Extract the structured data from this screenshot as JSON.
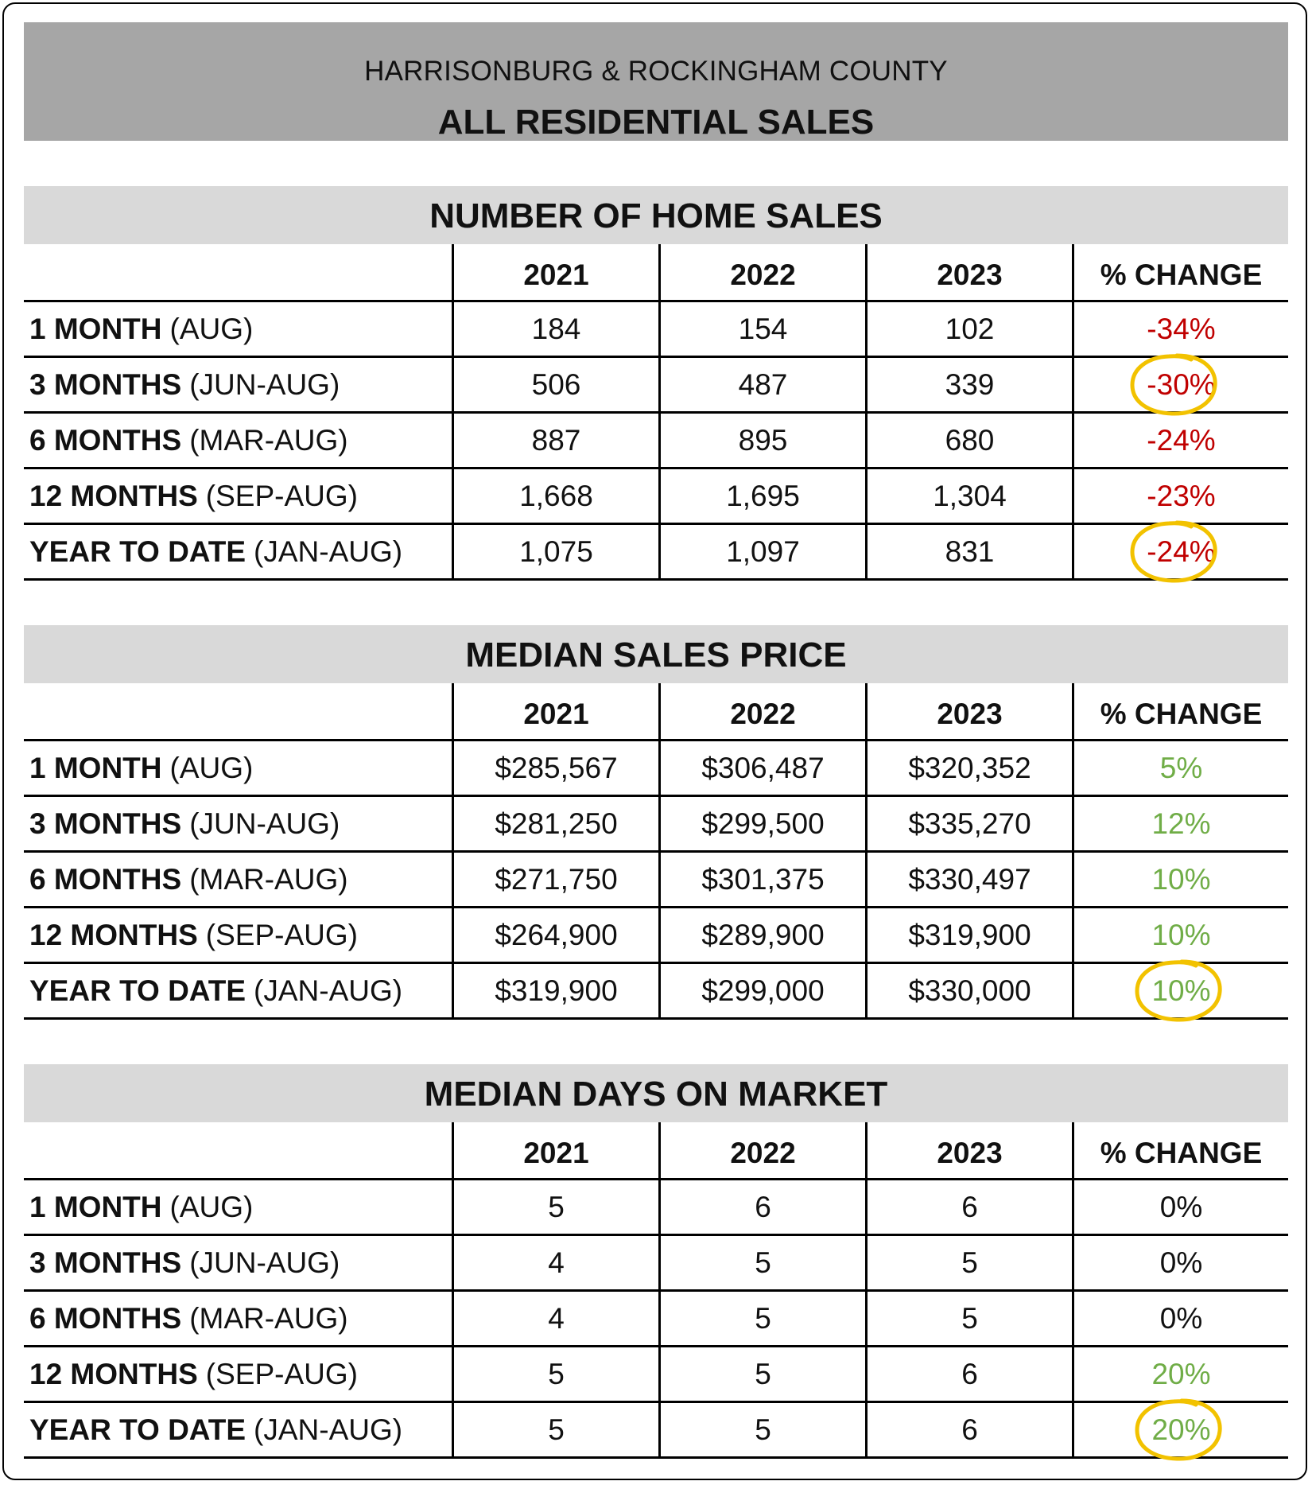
{
  "header": {
    "subtitle": "HARRISONBURG & ROCKINGHAM COUNTY",
    "title": "ALL RESIDENTIAL SALES"
  },
  "colors": {
    "negative": "#c00000",
    "positive": "#70ad47",
    "highlight": "#f2c200",
    "header_bg": "#a6a6a6",
    "section_bg": "#d9d9d9"
  },
  "sections": [
    {
      "title": "NUMBER OF HOME SALES",
      "columns": [
        "2021",
        "2022",
        "2023",
        "% CHANGE"
      ],
      "rows": [
        {
          "label": "1 MONTH",
          "range": "(AUG)",
          "values": [
            "184",
            "154",
            "102"
          ],
          "change": "-34%",
          "tone": "neg",
          "circled": false
        },
        {
          "label": "3 MONTHS",
          "range": "(JUN-AUG)",
          "values": [
            "506",
            "487",
            "339"
          ],
          "change": "-30%",
          "tone": "neg",
          "circled": true
        },
        {
          "label": "6 MONTHS",
          "range": "(MAR-AUG)",
          "values": [
            "887",
            "895",
            "680"
          ],
          "change": "-24%",
          "tone": "neg",
          "circled": false
        },
        {
          "label": "12 MONTHS",
          "range": "(SEP-AUG)",
          "values": [
            "1,668",
            "1,695",
            "1,304"
          ],
          "change": "-23%",
          "tone": "neg",
          "circled": false
        },
        {
          "label": "YEAR TO DATE",
          "range": "(JAN-AUG)",
          "values": [
            "1,075",
            "1,097",
            "831"
          ],
          "change": "-24%",
          "tone": "neg",
          "circled": true
        }
      ]
    },
    {
      "title": "MEDIAN SALES PRICE",
      "columns": [
        "2021",
        "2022",
        "2023",
        "% CHANGE"
      ],
      "rows": [
        {
          "label": "1 MONTH",
          "range": "(AUG)",
          "values": [
            "$285,567",
            "$306,487",
            "$320,352"
          ],
          "change": "5%",
          "tone": "pos",
          "circled": false
        },
        {
          "label": "3 MONTHS",
          "range": "(JUN-AUG)",
          "values": [
            "$281,250",
            "$299,500",
            "$335,270"
          ],
          "change": "12%",
          "tone": "pos",
          "circled": false
        },
        {
          "label": "6 MONTHS",
          "range": "(MAR-AUG)",
          "values": [
            "$271,750",
            "$301,375",
            "$330,497"
          ],
          "change": "10%",
          "tone": "pos",
          "circled": false
        },
        {
          "label": "12 MONTHS",
          "range": "(SEP-AUG)",
          "values": [
            "$264,900",
            "$289,900",
            "$319,900"
          ],
          "change": "10%",
          "tone": "pos",
          "circled": false
        },
        {
          "label": "YEAR TO DATE",
          "range": "(JAN-AUG)",
          "values": [
            "$319,900",
            "$299,000",
            "$330,000"
          ],
          "change": "10%",
          "tone": "pos",
          "circled": true
        }
      ]
    },
    {
      "title": "MEDIAN DAYS ON MARKET",
      "columns": [
        "2021",
        "2022",
        "2023",
        "% CHANGE"
      ],
      "rows": [
        {
          "label": "1 MONTH",
          "range": "(AUG)",
          "values": [
            "5",
            "6",
            "6"
          ],
          "change": "0%",
          "tone": "neu",
          "circled": false
        },
        {
          "label": "3 MONTHS",
          "range": "(JUN-AUG)",
          "values": [
            "4",
            "5",
            "5"
          ],
          "change": "0%",
          "tone": "neu",
          "circled": false
        },
        {
          "label": "6 MONTHS",
          "range": "(MAR-AUG)",
          "values": [
            "4",
            "5",
            "5"
          ],
          "change": "0%",
          "tone": "neu",
          "circled": false
        },
        {
          "label": "12 MONTHS",
          "range": "(SEP-AUG)",
          "values": [
            "5",
            "5",
            "6"
          ],
          "change": "20%",
          "tone": "pos",
          "circled": false
        },
        {
          "label": "YEAR TO DATE",
          "range": "(JAN-AUG)",
          "values": [
            "5",
            "5",
            "6"
          ],
          "change": "20%",
          "tone": "pos",
          "circled": true
        }
      ]
    }
  ]
}
